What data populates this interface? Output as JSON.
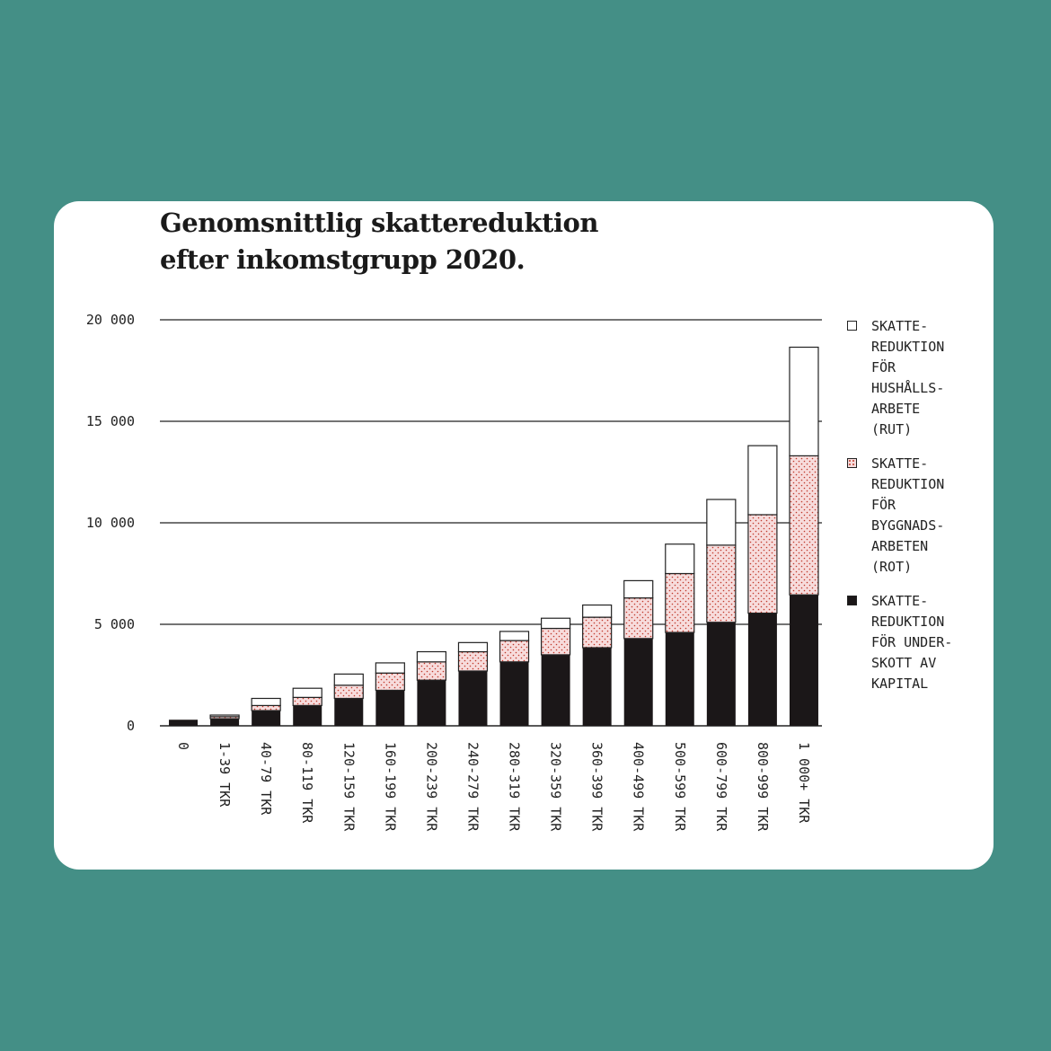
{
  "chart_data": {
    "type": "bar",
    "stacked": true,
    "title": "Genomsnittlig skattereduktion efter inkomstgrupp 2020.",
    "title_lines": [
      "Genomsnittlig skattereduktion",
      "efter inkomstgrupp 2020."
    ],
    "ylim": [
      0,
      20000
    ],
    "yticks": [
      0,
      5000,
      10000,
      15000,
      20000
    ],
    "ytick_labels": [
      "0",
      "5 000",
      "10 000",
      "15 000",
      "20 000"
    ],
    "grid": true,
    "legend_position": "right",
    "categories": [
      "0",
      "1-39 TKR",
      "40-79 TKR",
      "80-119 TKR",
      "120-159 TKR",
      "160-199 TKR",
      "200-239 TKR",
      "240-279 TKR",
      "280-319 TKR",
      "320-359 TKR",
      "360-399 TKR",
      "400-499 TKR",
      "500-599 TKR",
      "600-799 TKR",
      "800-999 TKR",
      "1 000+ TKR"
    ],
    "series": [
      {
        "name": "SKATTE-\nREDUKTION\nFÖR UNDER-\nSKOTT AV\nKAPITAL",
        "style": "solid",
        "color": "#1b1718",
        "values": [
          300,
          350,
          750,
          1000,
          1350,
          1750,
          2250,
          2700,
          3150,
          3500,
          3850,
          4300,
          4600,
          5100,
          5550,
          6450
        ]
      },
      {
        "name": "SKATTE-\nREDUKTION\nFÖR\nBYGGNADS-\nARBETEN\n(ROT)",
        "style": "dotted",
        "color": "#f7dcdc",
        "values": [
          0,
          100,
          250,
          400,
          650,
          850,
          900,
          950,
          1050,
          1300,
          1500,
          2000,
          2900,
          3800,
          4850,
          6850
        ]
      },
      {
        "name": "SKATTE-\nREDUKTION\nFÖR\nHUSHÅLLS-\nARBETE\n(RUT)",
        "style": "outline",
        "color": "#ffffff",
        "values": [
          0,
          80,
          350,
          450,
          550,
          500,
          500,
          450,
          450,
          500,
          600,
          850,
          1450,
          2250,
          3400,
          5350
        ]
      }
    ],
    "legend_order": [
      2,
      1,
      0
    ]
  }
}
